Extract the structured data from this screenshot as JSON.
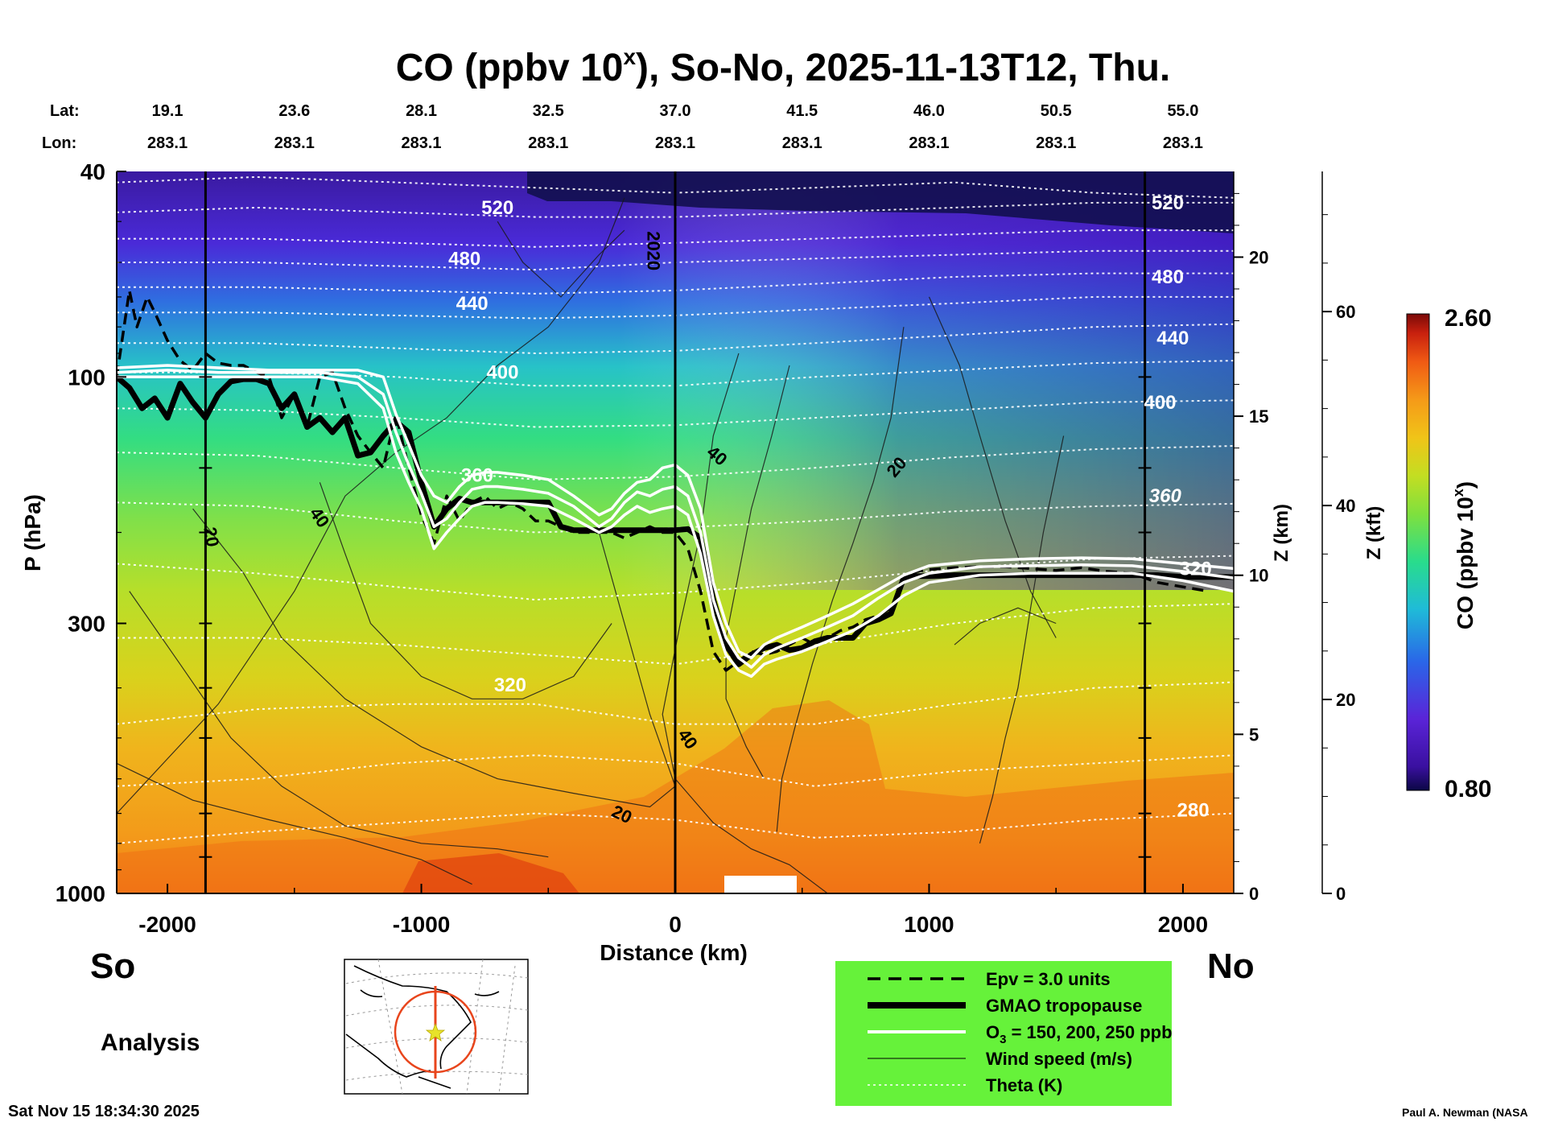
{
  "chart_data": {
    "type": "heatmap",
    "title_main": "CO (ppbv 10",
    "title_sup": "x",
    "title_rest": "), So-No, 2025-11-13T12, Thu.",
    "lat_label": "Lat:",
    "lon_label": "Lon:",
    "lat_ticks": [
      "19.1",
      "23.6",
      "28.1",
      "32.5",
      "37.0",
      "41.5",
      "46.0",
      "50.5",
      "55.0"
    ],
    "lon_ticks": [
      "283.1",
      "283.1",
      "283.1",
      "283.1",
      "283.1",
      "283.1",
      "283.1",
      "283.1",
      "283.1"
    ],
    "geo_tick_distance_km": [
      -2000,
      -1500,
      -1000,
      -500,
      0,
      500,
      1000,
      1500,
      2000
    ],
    "xlabel": "Distance (km)",
    "xlim": [
      -2200,
      2200
    ],
    "x_ticks": [
      -2000,
      -1000,
      0,
      1000,
      2000
    ],
    "x_tick_labels": [
      "-2000",
      "-1000",
      "0",
      "1000",
      "2000"
    ],
    "ylabel": "P (hPa)",
    "ylim_hpa": [
      1000,
      40
    ],
    "y_ticks": [
      40,
      100,
      300,
      1000
    ],
    "y_tick_labels": [
      "40",
      "100",
      "300",
      "1000"
    ],
    "z_km_label": "Z (km)",
    "z_km_ticks": [
      0,
      5,
      10,
      15,
      20
    ],
    "z_km_tick_labels": [
      "0",
      "5",
      "10",
      "15",
      "20"
    ],
    "z_kft_label": "Z (kft)",
    "z_kft_ticks": [
      0,
      20,
      40,
      60
    ],
    "z_kft_tick_labels": [
      "0",
      "20",
      "40",
      "60"
    ],
    "colorbar": {
      "label": "CO (ppbv 10",
      "label_sup": "x",
      "label_end": ")",
      "min": 0.8,
      "max": 2.6,
      "min_label": "0.80",
      "max_label": "2.60"
    },
    "theta_labels": [
      {
        "text": "520",
        "x_km": -700,
        "p": 47
      },
      {
        "text": "480",
        "x_km": -830,
        "p": 59
      },
      {
        "text": "440",
        "x_km": -800,
        "p": 72
      },
      {
        "text": "400",
        "x_km": -680,
        "p": 98
      },
      {
        "text": "360",
        "x_km": -780,
        "p": 155
      },
      {
        "text": "320",
        "x_km": -650,
        "p": 395
      },
      {
        "text": "520",
        "x_km": 1940,
        "p": 46
      },
      {
        "text": "480",
        "x_km": 1940,
        "p": 64
      },
      {
        "text": "440",
        "x_km": 1960,
        "p": 84
      },
      {
        "text": "400",
        "x_km": 1910,
        "p": 112
      },
      {
        "text": "360",
        "x_km": 1930,
        "p": 170
      },
      {
        "text": "320",
        "x_km": 2050,
        "p": 235
      },
      {
        "text": "280",
        "x_km": 2040,
        "p": 690
      }
    ],
    "wind_labels": [
      {
        "text": "20",
        "x_km": -1850,
        "p": 205,
        "rot": 80
      },
      {
        "text": "40",
        "x_km": -1420,
        "p": 190,
        "rot": 55
      },
      {
        "text": "40",
        "x_km": 150,
        "p": 145,
        "rot": 40
      },
      {
        "text": "20",
        "x_km": 890,
        "p": 152,
        "rot": -50
      },
      {
        "text": "40",
        "x_km": 30,
        "p": 510,
        "rot": 55
      },
      {
        "text": "20",
        "x_km": -220,
        "p": 720,
        "rot": 25
      },
      {
        "text": "2020",
        "x_km": -110,
        "p": 57,
        "rot": 90
      }
    ],
    "series": [
      {
        "name": "GMAO tropopause",
        "style": "thick-black",
        "x_km": [
          -2200,
          -2150,
          -2100,
          -2050,
          -2000,
          -1950,
          -1900,
          -1850,
          -1800,
          -1750,
          -1700,
          -1650,
          -1600,
          -1550,
          -1500,
          -1450,
          -1400,
          -1350,
          -1300,
          -1250,
          -1200,
          -1150,
          -1100,
          -1050,
          -1000,
          -950,
          -900,
          -850,
          -800,
          -750,
          -700,
          -650,
          -600,
          -550,
          -500,
          -450,
          -400,
          -350,
          -300,
          -250,
          -200,
          -150,
          -100,
          -50,
          0,
          50,
          100,
          150,
          200,
          250,
          300,
          350,
          400,
          450,
          500,
          550,
          600,
          650,
          700,
          750,
          800,
          850,
          900,
          950,
          1000,
          1100,
          1200,
          1300,
          1400,
          1500,
          1600,
          1700,
          1800,
          1900,
          2000,
          2100,
          2200
        ],
        "p": [
          100,
          105,
          115,
          110,
          120,
          103,
          112,
          120,
          108,
          102,
          101,
          101,
          103,
          115,
          108,
          125,
          120,
          128,
          120,
          142,
          140,
          130,
          122,
          128,
          160,
          195,
          180,
          172,
          175,
          175,
          175,
          175,
          175,
          175,
          175,
          195,
          198,
          198,
          198,
          198,
          198,
          198,
          198,
          198,
          198,
          197,
          205,
          270,
          330,
          360,
          345,
          335,
          330,
          338,
          335,
          325,
          320,
          320,
          320,
          300,
          295,
          287,
          245,
          243,
          243,
          242,
          242,
          242,
          242,
          242,
          242,
          242,
          242,
          242,
          244,
          244,
          244
        ]
      },
      {
        "name": "Epv = 3.0 units",
        "style": "dashed-black",
        "x_km": [
          -2200,
          -2150,
          -2120,
          -2080,
          -2050,
          -2000,
          -1950,
          -1900,
          -1850,
          -1800,
          -1750,
          -1700,
          -1650,
          -1600,
          -1550,
          -1500,
          -1450,
          -1400,
          -1350,
          -1300,
          -1250,
          -1200,
          -1150,
          -1100,
          -1050,
          -1000,
          -950,
          -900,
          -850,
          -800,
          -750,
          -700,
          -650,
          -600,
          -550,
          -500,
          -450,
          -400,
          -350,
          -300,
          -250,
          -200,
          -150,
          -100,
          -50,
          0,
          50,
          100,
          150,
          200,
          250,
          300,
          350,
          400,
          450,
          500,
          550,
          600,
          650,
          700,
          750,
          800,
          850,
          900,
          950,
          1000,
          1100,
          1200,
          1300,
          1400,
          1500,
          1600,
          1700,
          1800,
          1900,
          2000,
          2100,
          2200
        ],
        "p": [
          100,
          68,
          80,
          70,
          75,
          85,
          93,
          97,
          90,
          94,
          95,
          95,
          98,
          100,
          120,
          108,
          125,
          100,
          98,
          115,
          130,
          140,
          150,
          118,
          150,
          185,
          210,
          170,
          190,
          175,
          170,
          180,
          175,
          180,
          190,
          190,
          195,
          200,
          200,
          200,
          200,
          205,
          200,
          195,
          200,
          200,
          215,
          260,
          340,
          370,
          355,
          340,
          345,
          340,
          330,
          320,
          330,
          320,
          310,
          305,
          295,
          290,
          280,
          250,
          238,
          236,
          234,
          233,
          233,
          235,
          237,
          234,
          238,
          240,
          250,
          255,
          260
        ]
      },
      {
        "name": "O3 = 150 ppb",
        "style": "white",
        "x_km": [
          -2200,
          -2000,
          -1800,
          -1600,
          -1400,
          -1250,
          -1150,
          -1100,
          -1050,
          -1000,
          -950,
          -900,
          -850,
          -800,
          -750,
          -700,
          -600,
          -500,
          -400,
          -300,
          -250,
          -200,
          -150,
          -100,
          -50,
          0,
          50,
          100,
          150,
          200,
          250,
          300,
          350,
          400,
          500,
          600,
          700,
          800,
          900,
          1000,
          1200,
          1400,
          1600,
          1800,
          2000,
          2200
        ],
        "p": [
          96,
          95,
          96,
          97,
          97,
          97,
          100,
          118,
          135,
          155,
          170,
          175,
          163,
          155,
          153,
          153,
          155,
          158,
          170,
          185,
          180,
          168,
          160,
          158,
          150,
          148,
          155,
          180,
          250,
          300,
          340,
          350,
          330,
          320,
          305,
          290,
          275,
          258,
          242,
          232,
          227,
          225,
          224,
          225,
          230,
          235
        ]
      },
      {
        "name": "O3 = 200 ppb",
        "style": "white",
        "x_km": [
          -2200,
          -2000,
          -1800,
          -1600,
          -1400,
          -1250,
          -1150,
          -1100,
          -1050,
          -1000,
          -950,
          -900,
          -850,
          -800,
          -750,
          -700,
          -600,
          -500,
          -400,
          -300,
          -250,
          -200,
          -150,
          -100,
          -50,
          0,
          50,
          100,
          150,
          200,
          250,
          300,
          350,
          400,
          500,
          600,
          700,
          800,
          900,
          1000,
          1200,
          1400,
          1600,
          1800,
          2000,
          2200
        ],
        "p": [
          98,
          97,
          98,
          98,
          98,
          100,
          108,
          128,
          148,
          168,
          195,
          188,
          175,
          165,
          163,
          163,
          165,
          168,
          178,
          195,
          188,
          175,
          167,
          170,
          165,
          163,
          170,
          200,
          270,
          320,
          350,
          365,
          345,
          335,
          320,
          305,
          290,
          268,
          250,
          240,
          233,
          232,
          231,
          232,
          238,
          245
        ]
      },
      {
        "name": "O3 = 250 ppb",
        "style": "white",
        "x_km": [
          -2200,
          -2000,
          -1800,
          -1600,
          -1400,
          -1250,
          -1150,
          -1100,
          -1050,
          -1000,
          -950,
          -900,
          -850,
          -800,
          -750,
          -700,
          -600,
          -500,
          -400,
          -300,
          -250,
          -200,
          -150,
          -100,
          -50,
          0,
          50,
          100,
          150,
          200,
          250,
          300,
          350,
          400,
          500,
          600,
          700,
          800,
          900,
          1000,
          1200,
          1400,
          1600,
          1800,
          2000,
          2200
        ],
        "p": [
          100,
          100,
          100,
          100,
          100,
          103,
          115,
          140,
          160,
          180,
          215,
          200,
          188,
          178,
          175,
          175,
          176,
          178,
          188,
          200,
          195,
          185,
          178,
          183,
          180,
          178,
          185,
          220,
          290,
          345,
          370,
          380,
          360,
          352,
          340,
          325,
          310,
          290,
          265,
          250,
          242,
          240,
          240,
          240,
          248,
          260
        ]
      }
    ],
    "legend": [
      {
        "label": "Epv = 3.0 units",
        "style": "dashed-black"
      },
      {
        "label": "GMAO tropopause",
        "style": "thick-black"
      },
      {
        "label": "O",
        "label_sub": "3",
        "label_rest": " = 150, 200, 250 ppb",
        "style": "white"
      },
      {
        "label": "Wind speed (m/s)",
        "style": "thin-black"
      },
      {
        "label": "Theta (K)",
        "style": "dotted-white"
      }
    ],
    "legend_position": "bottom-right"
  },
  "annotations": {
    "left_label": "So",
    "right_label": "No",
    "analysis_label": "Analysis",
    "timestamp": "Sat Nov 15 18:34:30 2025",
    "credit": "Paul A. Newman (NASA"
  },
  "colors": {
    "legend_bg": "#66f23a",
    "map_track": "#e8451c",
    "map_star": "#e7e22a"
  }
}
